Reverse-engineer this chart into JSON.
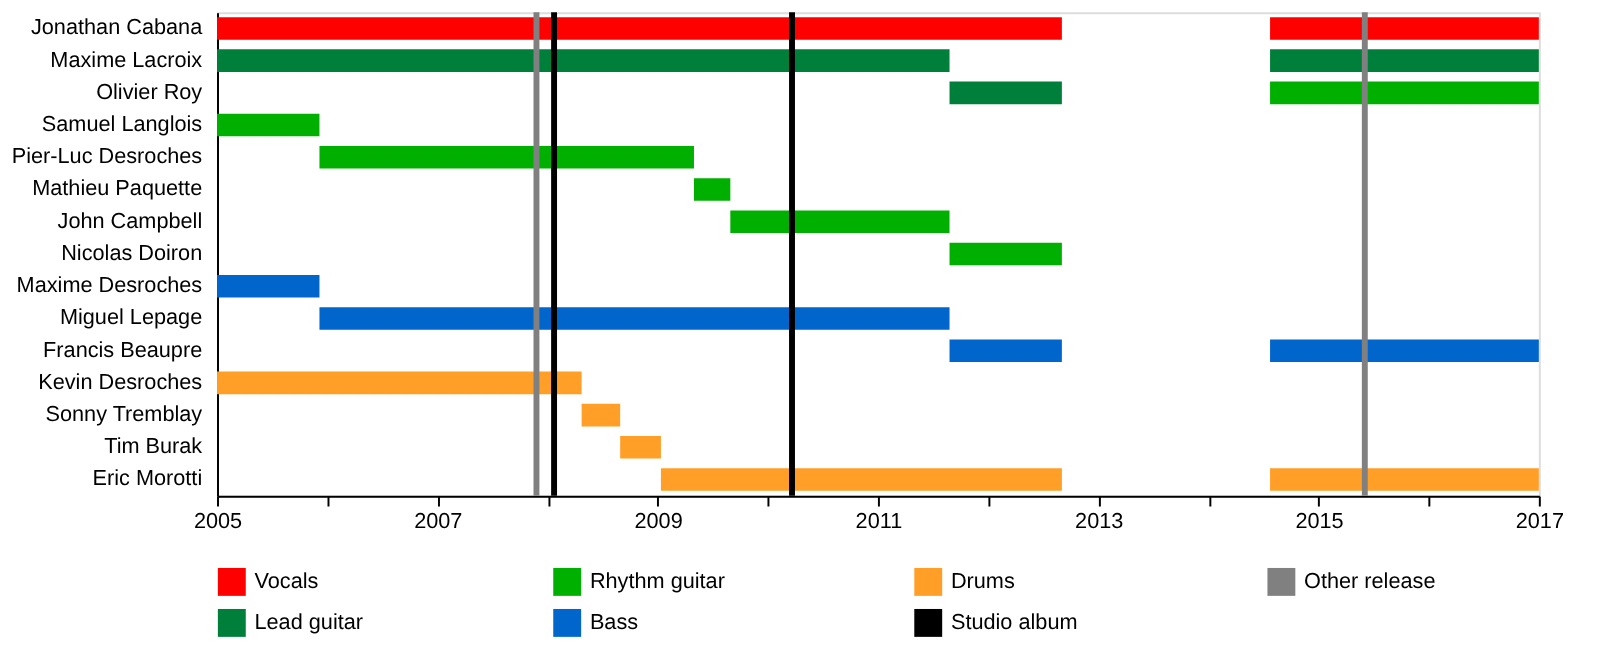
{
  "chart_data": {
    "type": "bar",
    "orientation": "horizontal",
    "categories": [
      "Jonathan Cabana",
      "Maxime Lacroix",
      "Olivier Roy",
      "Samuel Langlois",
      "Pier-Luc Desroches",
      "Mathieu Paquette",
      "John Campbell",
      "Nicolas Doiron",
      "Maxime Desroches",
      "Miguel Lepage",
      "Francis Beaupre",
      "Kevin Desroches",
      "Sonny Tremblay",
      "Tim Burak",
      "Eric Morotti"
    ],
    "series": [
      {
        "name": "Vocals",
        "color": "#ff0000",
        "base": [
          2005,
          null,
          null,
          null,
          null,
          null,
          null,
          null,
          null,
          null,
          null,
          null,
          null,
          null,
          null
        ],
        "values": [
          7.67,
          null,
          null,
          null,
          null,
          null,
          null,
          null,
          null,
          null,
          null,
          null,
          null,
          null,
          null
        ]
      },
      {
        "color": "#ff0000",
        "base": [
          2014.56,
          null,
          null,
          null,
          null,
          null,
          null,
          null,
          null,
          null,
          null,
          null,
          null,
          null,
          null
        ],
        "values": [
          2.44,
          null,
          null,
          null,
          null,
          null,
          null,
          null,
          null,
          null,
          null,
          null,
          null,
          null,
          null
        ]
      },
      {
        "name": "Lead guitar",
        "color": "#007f3a",
        "base": [
          null,
          2005,
          2011.65,
          null,
          null,
          null,
          null,
          null,
          null,
          null,
          null,
          null,
          null,
          null,
          null
        ],
        "values": [
          null,
          6.65,
          1.02,
          null,
          null,
          null,
          null,
          null,
          null,
          null,
          null,
          null,
          null,
          null,
          null
        ]
      },
      {
        "color": "#007f3a",
        "base": [
          null,
          2014.56,
          null,
          null,
          null,
          null,
          null,
          null,
          null,
          null,
          null,
          null,
          null,
          null,
          null
        ],
        "values": [
          null,
          2.44,
          null,
          null,
          null,
          null,
          null,
          null,
          null,
          null,
          null,
          null,
          null,
          null,
          null
        ]
      },
      {
        "name": "Rhythm guitar",
        "color": "#00b000",
        "base": [
          null,
          null,
          2014.56,
          2005,
          2005.93,
          2009.33,
          2009.66,
          2011.65,
          null,
          null,
          null,
          null,
          null,
          null,
          null
        ],
        "values": [
          null,
          null,
          2.44,
          0.93,
          3.4,
          0.33,
          1.99,
          1.02,
          null,
          null,
          null,
          null,
          null,
          null,
          null
        ]
      },
      {
        "name": "Bass",
        "color": "#0066cc",
        "base": [
          null,
          null,
          null,
          null,
          null,
          null,
          null,
          null,
          2005,
          2005.93,
          2011.65,
          null,
          null,
          null,
          null
        ],
        "values": [
          null,
          null,
          null,
          null,
          null,
          null,
          null,
          null,
          0.93,
          5.72,
          1.02,
          null,
          null,
          null,
          null
        ]
      },
      {
        "color": "#0066cc",
        "base": [
          null,
          null,
          null,
          null,
          null,
          null,
          null,
          null,
          null,
          null,
          2014.56,
          null,
          null,
          null,
          null
        ],
        "values": [
          null,
          null,
          null,
          null,
          null,
          null,
          null,
          null,
          null,
          null,
          2.44,
          null,
          null,
          null,
          null
        ]
      },
      {
        "name": "Drums",
        "color": "#ff9f27",
        "base": [
          null,
          null,
          null,
          null,
          null,
          null,
          null,
          null,
          null,
          null,
          null,
          2005,
          2008.31,
          2008.66,
          2009.03
        ],
        "values": [
          null,
          null,
          null,
          null,
          null,
          null,
          null,
          null,
          null,
          null,
          null,
          3.31,
          0.35,
          0.37,
          3.64
        ]
      },
      {
        "color": "#ff9f27",
        "base": [
          null,
          null,
          null,
          null,
          null,
          null,
          null,
          null,
          null,
          null,
          null,
          null,
          null,
          null,
          2014.56
        ],
        "values": [
          null,
          null,
          null,
          null,
          null,
          null,
          null,
          null,
          null,
          null,
          null,
          null,
          null,
          null,
          2.44
        ]
      }
    ],
    "ref_lines": [
      {
        "axis": "x",
        "value": 2008.06,
        "label": "Studio album",
        "color": "#000000"
      },
      {
        "axis": "x",
        "value": 2010.22,
        "color": "#000000"
      },
      {
        "axis": "x",
        "value": 2007.9,
        "label": "Other release",
        "color": "#808080"
      },
      {
        "axis": "x",
        "value": 2015.42,
        "color": "#808080"
      }
    ],
    "xlim": [
      2005,
      2017
    ],
    "xticks": [
      2005,
      {
        "value": 2006,
        "label": null
      },
      2007,
      {
        "value": 2008,
        "label": null
      },
      2009,
      {
        "value": 2010,
        "label": null
      },
      2011,
      {
        "value": 2012,
        "label": null
      },
      2013,
      {
        "value": 2014,
        "label": null
      },
      2015,
      {
        "value": 2016,
        "label": null
      },
      2017
    ],
    "grid": false,
    "legend": "bottom"
  }
}
